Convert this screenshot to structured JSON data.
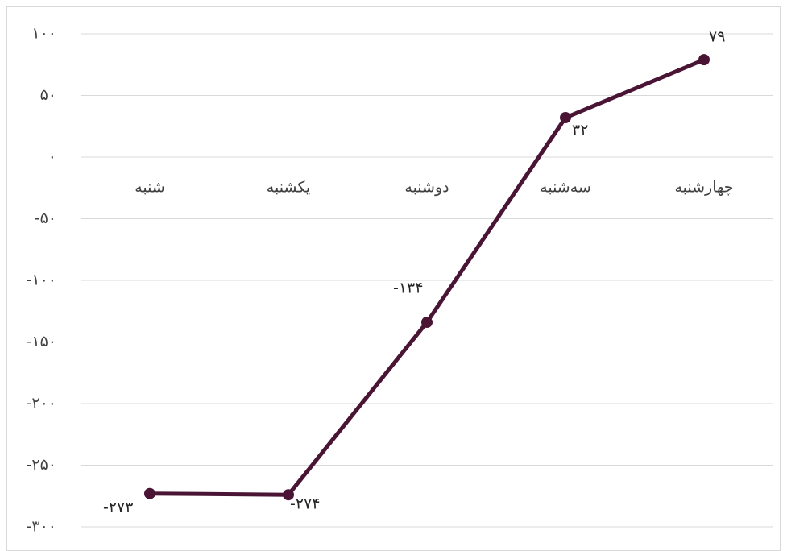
{
  "chart_data": {
    "type": "line",
    "title": "",
    "xlabel": "",
    "ylabel": "",
    "categories": [
      "شنبه",
      "یکشنبه",
      "دوشنبه",
      "سه‌شنبه",
      "چهارشنبه"
    ],
    "series": [
      {
        "values": [
          -273,
          -274,
          -134,
          32,
          79
        ],
        "value_labels": [
          "-۲۷۳",
          "-۲۷۴",
          "-۱۳۴",
          "۳۲",
          "۷۹"
        ]
      }
    ],
    "ylim": [
      -300,
      100
    ],
    "y_ticks": [
      100,
      50,
      0,
      -50,
      -100,
      -150,
      -200,
      -250,
      -300
    ],
    "y_tick_labels": [
      "۱۰۰",
      "۵۰",
      "۰",
      "-۵۰",
      "-۱۰۰",
      "-۱۵۰",
      "-۲۰۰",
      "-۲۵۰",
      "-۳۰۰"
    ],
    "grid": true,
    "legend": "none",
    "colors": {
      "series": "#4a1535",
      "grid": "#d9d9d9",
      "text": "#404040"
    }
  }
}
